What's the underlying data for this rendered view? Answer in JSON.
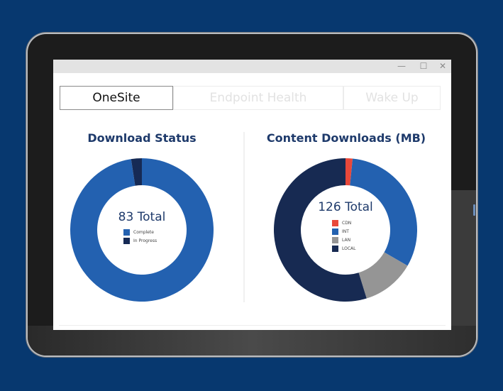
{
  "window": {
    "controls": {
      "minimize": "—",
      "maximize": "☐",
      "close": "✕"
    }
  },
  "tabs": [
    {
      "label": "OneSite",
      "active": true
    },
    {
      "label": "Endpoint Health",
      "active": false
    },
    {
      "label": "Wake Up",
      "active": false
    }
  ],
  "colors": {
    "background": "#07386f",
    "complete": "#2361b0",
    "in_progress": "#162a55",
    "cdn": "#e8483a",
    "int": "#2361b0",
    "lan": "#959595",
    "local": "#172a52",
    "title": "#1e3a6b"
  },
  "chart_data": [
    {
      "type": "pie",
      "variant": "donut",
      "title": "Download Status",
      "center_label": "83 Total",
      "total": 83,
      "categories": [
        "Complete",
        "In Progress"
      ],
      "values": [
        81,
        2
      ],
      "colors": [
        "#2361b0",
        "#162a55"
      ],
      "legend_position": "center"
    },
    {
      "type": "pie",
      "variant": "donut",
      "title": "Content Downloads (MB)",
      "center_label": "126 Total",
      "total": 126,
      "categories": [
        "CDN",
        "INT",
        "LAN",
        "LOCAL"
      ],
      "values": [
        2,
        40,
        15,
        69
      ],
      "colors": [
        "#e8483a",
        "#2361b0",
        "#959595",
        "#172a52"
      ],
      "legend_position": "center"
    }
  ]
}
